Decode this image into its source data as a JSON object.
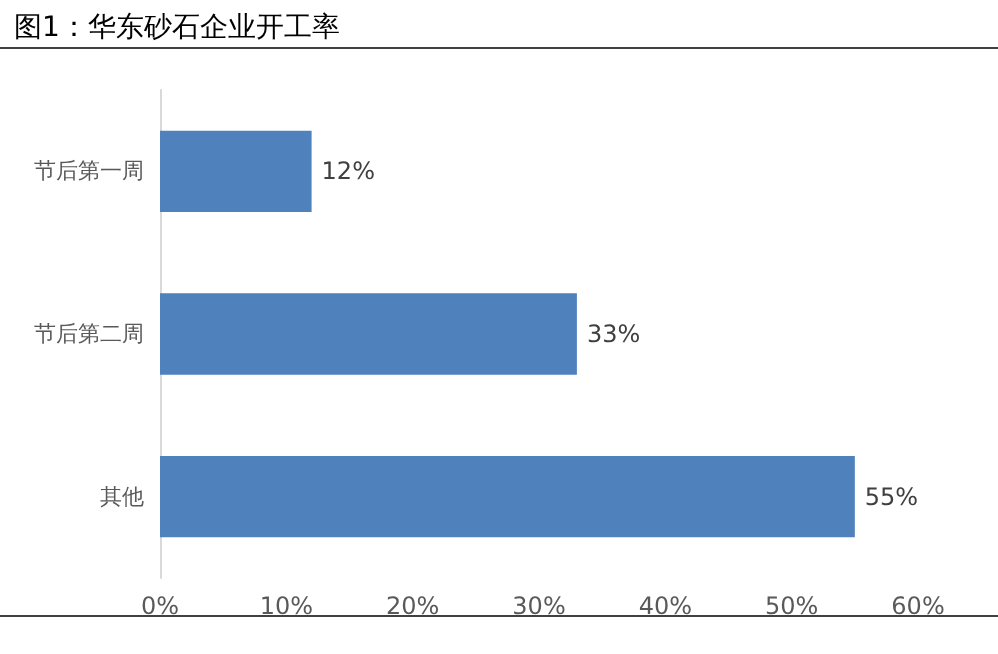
{
  "chart_data": {
    "type": "bar",
    "orientation": "horizontal",
    "title": "图1：华东砂石企业开工率",
    "categories": [
      "节后第一周",
      "节后第二周",
      "其他"
    ],
    "values": [
      12,
      33,
      55
    ],
    "color": "#4f81bd",
    "value_labels": [
      "12%",
      "33%",
      "55%"
    ],
    "xlim": [
      0,
      60
    ],
    "xticks": [
      {
        "value": 0,
        "label": "0%"
      },
      {
        "value": 10,
        "label": "10%"
      },
      {
        "value": 20,
        "label": "20%"
      },
      {
        "value": 30,
        "label": "30%"
      },
      {
        "value": 40,
        "label": "40%"
      },
      {
        "value": 50,
        "label": "50%"
      },
      {
        "value": 60,
        "label": "60%"
      }
    ]
  }
}
